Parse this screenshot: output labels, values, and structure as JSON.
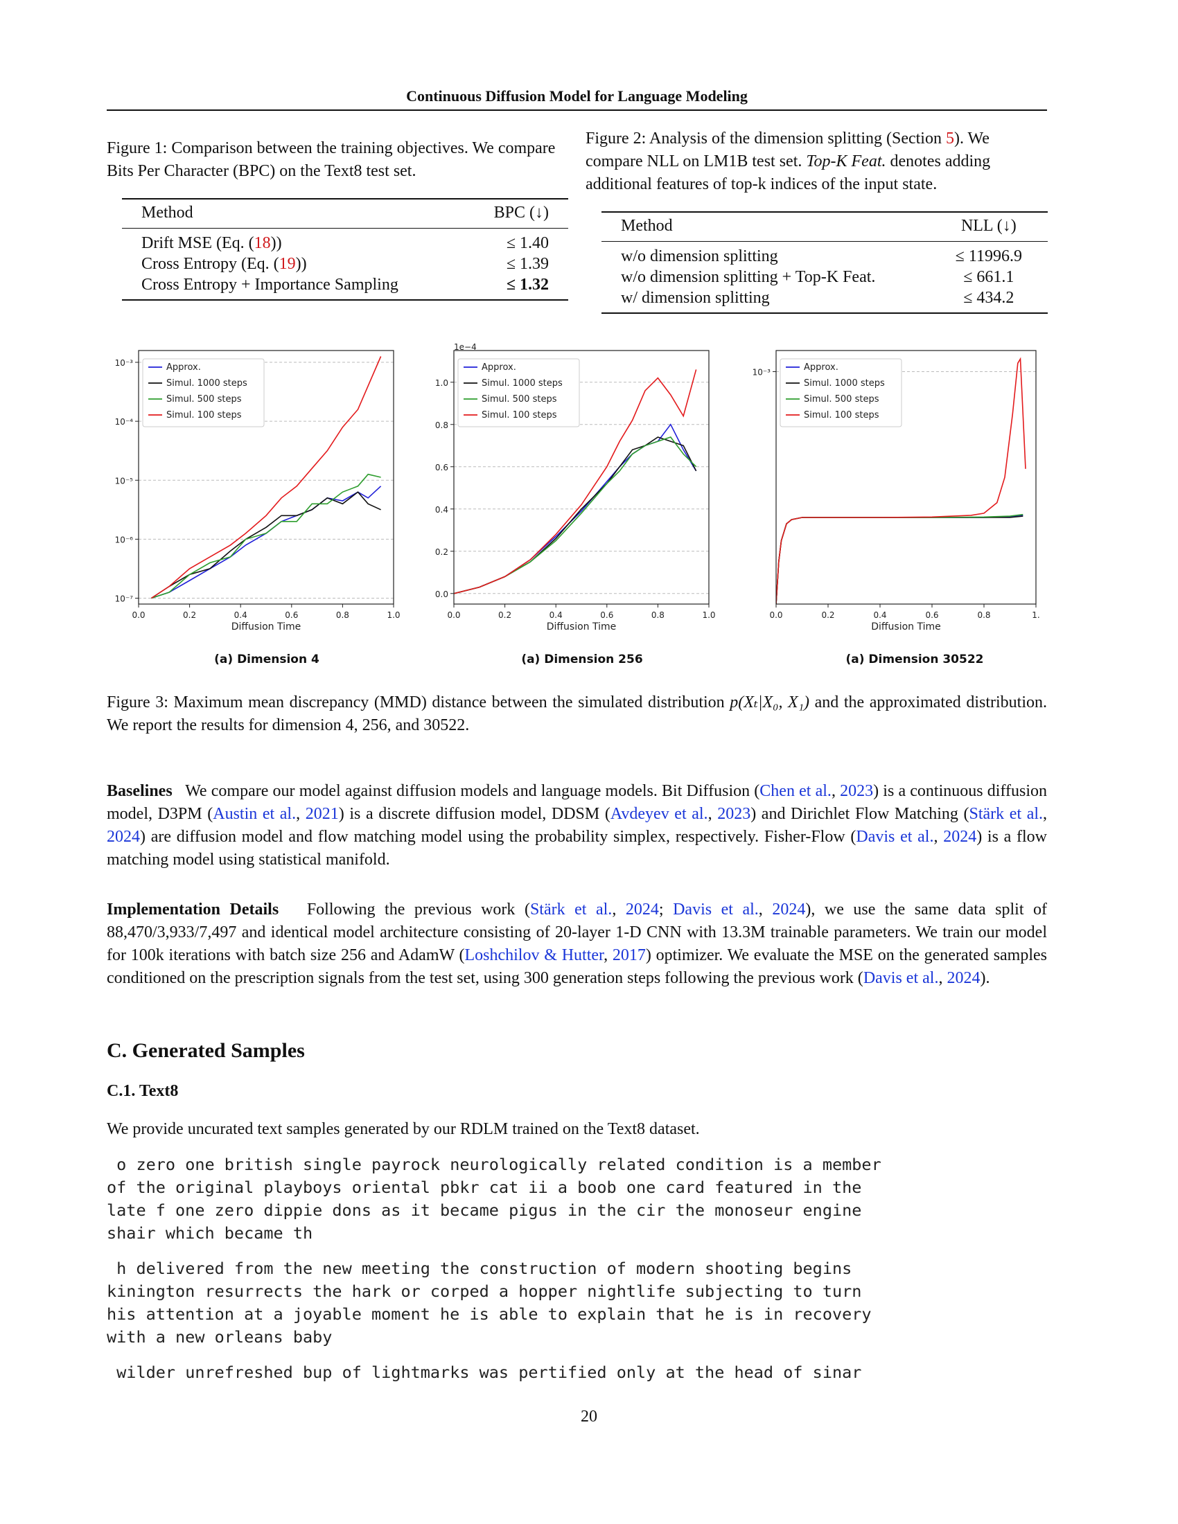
{
  "running_head": "Continuous Diffusion Model for Language Modeling",
  "figure1": {
    "caption": "Figure 1: Comparison between the training objectives. We compare Bits Per Character (BPC) on the Text8 test set.",
    "headers": [
      "Method",
      "BPC (↓)"
    ],
    "rows": [
      {
        "method_pre": "Drift MSE (Eq. (",
        "ref": "18",
        "method_post": "))",
        "value": "≤ 1.40",
        "bold": false
      },
      {
        "method_pre": "Cross Entropy (Eq. (",
        "ref": "19",
        "method_post": "))",
        "value": "≤ 1.39",
        "bold": false
      },
      {
        "method_pre": "Cross Entropy + Importance Sampling",
        "ref": "",
        "method_post": "",
        "value": "≤ 1.32",
        "bold": true
      }
    ]
  },
  "figure2": {
    "caption_pre": "Figure 2: Analysis of the dimension splitting (Section ",
    "caption_ref": "5",
    "caption_mid": "). We compare NLL on LM1B test set. ",
    "caption_italic": "Top-K Feat.",
    "caption_post": " denotes adding additional features of top-k indices of the input state.",
    "headers": [
      "Method",
      "NLL (↓)"
    ],
    "rows": [
      {
        "method": "w/o dimension splitting",
        "value": "≤ 11996.9"
      },
      {
        "method": "w/o dimension splitting + Top-K Feat.",
        "value": "≤ 661.1"
      },
      {
        "method": "w/ dimension splitting",
        "value": "≤ 434.2"
      }
    ]
  },
  "chart_data": [
    {
      "type": "line",
      "subtitle": "(a) Dimension 4",
      "xlabel": "Diffusion Time",
      "ylabel": "",
      "yscale": "log",
      "xlim": [
        0.0,
        1.0
      ],
      "ylim_exp": [
        -7.1,
        -2.8
      ],
      "xticks": [
        "0.0",
        "0.2",
        "0.4",
        "0.6",
        "0.8",
        "1.0"
      ],
      "yticks": [
        {
          "exp": -3,
          "label": "10⁻³"
        },
        {
          "exp": -4,
          "label": "10⁻⁴"
        },
        {
          "exp": -5,
          "label": "10⁻⁵"
        },
        {
          "exp": -6,
          "label": "10⁻⁶"
        },
        {
          "exp": -7,
          "label": "10⁻⁷"
        }
      ],
      "offset_label": "",
      "grid": "horizontal dashed",
      "legend_position": "top-left",
      "series": [
        {
          "name": "Approx.",
          "color": "#1f1fd8",
          "x": [
            0.05,
            0.12,
            0.2,
            0.28,
            0.36,
            0.42,
            0.5,
            0.56,
            0.62,
            0.68,
            0.74,
            0.8,
            0.86,
            0.9,
            0.95
          ],
          "y_exp": [
            -7.0,
            -6.9,
            -6.7,
            -6.5,
            -6.3,
            -6.1,
            -5.9,
            -5.7,
            -5.6,
            -5.5,
            -5.3,
            -5.35,
            -5.2,
            -5.3,
            -5.1
          ]
        },
        {
          "name": "Simul. 1000 steps",
          "color": "#111111",
          "x": [
            0.05,
            0.12,
            0.2,
            0.28,
            0.36,
            0.42,
            0.5,
            0.56,
            0.62,
            0.68,
            0.74,
            0.8,
            0.86,
            0.9,
            0.95
          ],
          "y_exp": [
            -7.0,
            -6.8,
            -6.6,
            -6.5,
            -6.2,
            -6.0,
            -5.8,
            -5.6,
            -5.6,
            -5.5,
            -5.3,
            -5.4,
            -5.2,
            -5.4,
            -5.5
          ]
        },
        {
          "name": "Simul. 500 steps",
          "color": "#2e9d2e",
          "x": [
            0.05,
            0.12,
            0.2,
            0.28,
            0.36,
            0.42,
            0.5,
            0.56,
            0.62,
            0.68,
            0.74,
            0.8,
            0.86,
            0.9,
            0.95
          ],
          "y_exp": [
            -7.0,
            -6.9,
            -6.6,
            -6.4,
            -6.3,
            -6.0,
            -5.9,
            -5.7,
            -5.7,
            -5.4,
            -5.4,
            -5.2,
            -5.1,
            -4.9,
            -4.95
          ]
        },
        {
          "name": "Simul. 100 steps",
          "color": "#e31a1c",
          "x": [
            0.05,
            0.12,
            0.2,
            0.28,
            0.36,
            0.42,
            0.5,
            0.56,
            0.62,
            0.68,
            0.74,
            0.8,
            0.86,
            0.9,
            0.95
          ],
          "y_exp": [
            -7.0,
            -6.8,
            -6.5,
            -6.3,
            -6.1,
            -5.9,
            -5.6,
            -5.3,
            -5.1,
            -4.8,
            -4.5,
            -4.1,
            -3.8,
            -3.4,
            -2.9
          ]
        }
      ]
    },
    {
      "type": "line",
      "subtitle": "(a) Dimension 256",
      "xlabel": "Diffusion Time",
      "ylabel": "",
      "yscale": "linear",
      "xlim": [
        0.0,
        1.0
      ],
      "ylim": [
        -0.05,
        1.15
      ],
      "xticks": [
        "0.0",
        "0.2",
        "0.4",
        "0.6",
        "0.8",
        "1.0"
      ],
      "yticks": [
        {
          "v": 0.0,
          "label": "0.0"
        },
        {
          "v": 0.2,
          "label": "0.2"
        },
        {
          "v": 0.4,
          "label": "0.4"
        },
        {
          "v": 0.6,
          "label": "0.6"
        },
        {
          "v": 0.8,
          "label": "0.8"
        },
        {
          "v": 1.0,
          "label": "1.0"
        }
      ],
      "offset_label": "1e−4",
      "grid": "horizontal dashed",
      "legend_position": "top-left",
      "series": [
        {
          "name": "Approx.",
          "color": "#1f1fd8",
          "x": [
            0.0,
            0.1,
            0.2,
            0.3,
            0.4,
            0.5,
            0.6,
            0.65,
            0.7,
            0.75,
            0.8,
            0.85,
            0.9,
            0.95
          ],
          "y": [
            0.0,
            0.03,
            0.08,
            0.16,
            0.27,
            0.39,
            0.53,
            0.6,
            0.66,
            0.7,
            0.72,
            0.8,
            0.68,
            0.58
          ]
        },
        {
          "name": "Simul. 1000 steps",
          "color": "#111111",
          "x": [
            0.0,
            0.1,
            0.2,
            0.3,
            0.4,
            0.5,
            0.6,
            0.65,
            0.7,
            0.75,
            0.8,
            0.85,
            0.9,
            0.95
          ],
          "y": [
            0.0,
            0.03,
            0.08,
            0.15,
            0.26,
            0.4,
            0.52,
            0.6,
            0.68,
            0.7,
            0.74,
            0.72,
            0.7,
            0.58
          ]
        },
        {
          "name": "Simul. 500 steps",
          "color": "#2e9d2e",
          "x": [
            0.0,
            0.1,
            0.2,
            0.3,
            0.4,
            0.5,
            0.6,
            0.65,
            0.7,
            0.75,
            0.8,
            0.85,
            0.9,
            0.95
          ],
          "y": [
            0.0,
            0.03,
            0.08,
            0.15,
            0.25,
            0.38,
            0.52,
            0.58,
            0.66,
            0.7,
            0.72,
            0.74,
            0.66,
            0.6
          ]
        },
        {
          "name": "Simul. 100 steps",
          "color": "#e31a1c",
          "x": [
            0.0,
            0.1,
            0.2,
            0.3,
            0.4,
            0.5,
            0.6,
            0.65,
            0.7,
            0.75,
            0.8,
            0.85,
            0.9,
            0.95
          ],
          "y": [
            0.0,
            0.03,
            0.08,
            0.16,
            0.28,
            0.42,
            0.6,
            0.72,
            0.82,
            0.96,
            1.02,
            0.94,
            0.84,
            1.06
          ]
        }
      ]
    },
    {
      "type": "line",
      "subtitle": "(a) Dimension 30522",
      "xlabel": "Diffusion Time",
      "ylabel": "",
      "yscale": "log",
      "xlim": [
        0.0,
        1.0
      ],
      "ylim_exp": [
        -3.55,
        -2.95
      ],
      "xticks": [
        "0.0",
        "0.2",
        "0.4",
        "0.6",
        "0.8",
        "1."
      ],
      "yticks": [
        {
          "exp": -3,
          "label": "10⁻³"
        }
      ],
      "offset_label": "",
      "grid": "horizontal dashed",
      "legend_position": "top-left",
      "series": [
        {
          "name": "Approx.",
          "color": "#1f1fd8",
          "x": [
            0.0,
            0.01,
            0.02,
            0.04,
            0.06,
            0.1,
            0.2,
            0.4,
            0.6,
            0.8,
            0.9,
            0.95
          ],
          "y_exp": [
            -3.55,
            -3.45,
            -3.4,
            -3.36,
            -3.35,
            -3.345,
            -3.345,
            -3.345,
            -3.345,
            -3.345,
            -3.343,
            -3.34
          ]
        },
        {
          "name": "Simul. 1000 steps",
          "color": "#111111",
          "x": [
            0.0,
            0.01,
            0.02,
            0.04,
            0.06,
            0.1,
            0.2,
            0.4,
            0.6,
            0.8,
            0.9,
            0.95
          ],
          "y_exp": [
            -3.55,
            -3.45,
            -3.4,
            -3.36,
            -3.35,
            -3.345,
            -3.345,
            -3.345,
            -3.345,
            -3.345,
            -3.345,
            -3.342
          ]
        },
        {
          "name": "Simul. 500 steps",
          "color": "#2e9d2e",
          "x": [
            0.0,
            0.01,
            0.02,
            0.04,
            0.06,
            0.1,
            0.2,
            0.4,
            0.6,
            0.8,
            0.9,
            0.95
          ],
          "y_exp": [
            -3.55,
            -3.45,
            -3.4,
            -3.36,
            -3.35,
            -3.345,
            -3.345,
            -3.345,
            -3.345,
            -3.344,
            -3.342,
            -3.338
          ]
        },
        {
          "name": "Simul. 100 steps",
          "color": "#e31a1c",
          "x": [
            0.0,
            0.01,
            0.02,
            0.04,
            0.06,
            0.1,
            0.2,
            0.4,
            0.6,
            0.75,
            0.8,
            0.85,
            0.88,
            0.91,
            0.93,
            0.94,
            0.96
          ],
          "y_exp": [
            -3.55,
            -3.45,
            -3.4,
            -3.36,
            -3.35,
            -3.345,
            -3.345,
            -3.345,
            -3.344,
            -3.34,
            -3.335,
            -3.31,
            -3.25,
            -3.1,
            -2.98,
            -2.97,
            -3.23
          ]
        }
      ]
    }
  ],
  "figure3_caption": {
    "pre": "Figure 3:  Maximum mean discrepancy (MMD) distance between the simulated distribution ",
    "math": "p(Xₜ|X₀, X₁)",
    "post": " and the approximated distribution. We report the results for dimension 4, 256, and 30522."
  },
  "baselines": {
    "heading": "Baselines",
    "parts": [
      {
        "t": "We compare our model against diffusion models and language models. Bit Diffusion (",
        "c": false
      },
      {
        "t": "Chen et al.",
        "c": true
      },
      {
        "t": ", ",
        "c": false
      },
      {
        "t": "2023",
        "c": true
      },
      {
        "t": ") is a continuous diffusion model, D3PM (",
        "c": false
      },
      {
        "t": "Austin et al.",
        "c": true
      },
      {
        "t": ", ",
        "c": false
      },
      {
        "t": "2021",
        "c": true
      },
      {
        "t": ") is a discrete diffusion model, DDSM (",
        "c": false
      },
      {
        "t": "Avdeyev et al.",
        "c": true
      },
      {
        "t": ", ",
        "c": false
      },
      {
        "t": "2023",
        "c": true
      },
      {
        "t": ") and Dirichlet Flow Matching (",
        "c": false
      },
      {
        "t": "Stärk et al.",
        "c": true
      },
      {
        "t": ", ",
        "c": false
      },
      {
        "t": "2024",
        "c": true
      },
      {
        "t": ") are diffusion model and flow matching model using the probability simplex, respectively. Fisher-Flow (",
        "c": false
      },
      {
        "t": "Davis et al.",
        "c": true
      },
      {
        "t": ", ",
        "c": false
      },
      {
        "t": "2024",
        "c": true
      },
      {
        "t": ") is a flow matching model using statistical manifold.",
        "c": false
      }
    ]
  },
  "implementation": {
    "heading": "Implementation Details",
    "parts": [
      {
        "t": "Following the previous work (",
        "c": false
      },
      {
        "t": "Stärk et al.",
        "c": true
      },
      {
        "t": ", ",
        "c": false
      },
      {
        "t": "2024",
        "c": true
      },
      {
        "t": "; ",
        "c": false
      },
      {
        "t": "Davis et al.",
        "c": true
      },
      {
        "t": ", ",
        "c": false
      },
      {
        "t": "2024",
        "c": true
      },
      {
        "t": "), we use the same data split of 88,470/3,933/7,497 and identical model architecture consisting of 20-layer 1-D CNN with 13.3M trainable parameters. We train our model for 100k iterations with batch size 256 and AdamW (",
        "c": false
      },
      {
        "t": "Loshchilov & Hutter",
        "c": true
      },
      {
        "t": ", ",
        "c": false
      },
      {
        "t": "2017",
        "c": true
      },
      {
        "t": ") optimizer. We evaluate the MSE on the generated samples conditioned on the prescription signals from the test set, using 300 generation steps following the previous work (",
        "c": false
      },
      {
        "t": "Davis et al.",
        "c": true
      },
      {
        "t": ", ",
        "c": false
      },
      {
        "t": "2024",
        "c": true
      },
      {
        "t": ").",
        "c": false
      }
    ]
  },
  "section_title": "C. Generated Samples",
  "subsection_title": "C.1. Text8",
  "samples_intro": "We provide uncurated text samples generated by our RDLM trained on the Text8 dataset.",
  "samples": [
    " o zero one british single payrock neurologically related condition is a member\nof the original playboys oriental pbkr cat ii a boob one card featured in the\nlate f one zero dippie dons as it became pigus in the cir the monoseur engine\nshair which became th",
    " h delivered from the new meeting the construction of modern shooting begins\nkinington resurrects the hark or corped a hopper nightlife subjecting to turn\nhis attention at a joyable moment he is able to explain that he is in recovery\nwith a new orleans baby",
    " wilder unrefreshed bup of lightmarks was pertified only at the head of sinar"
  ],
  "page_number": "20"
}
